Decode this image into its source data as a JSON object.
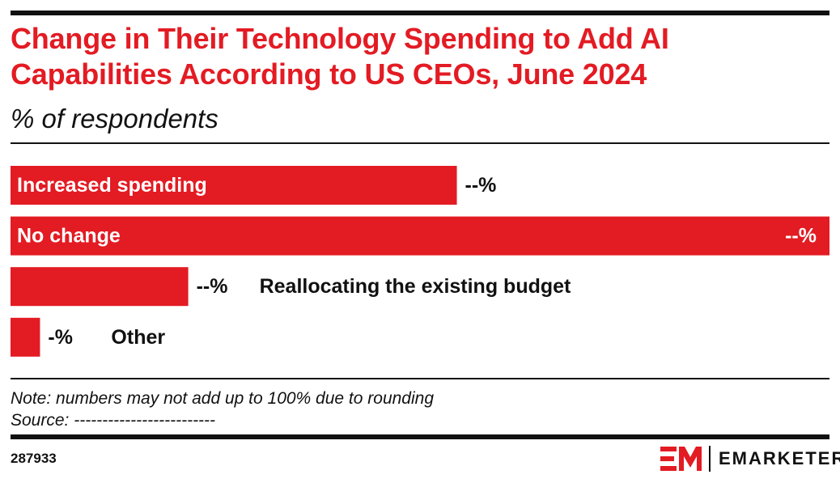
{
  "header": {
    "title_line1": "Change in Their Technology Spending to Add AI",
    "title_line2": "Capabilities According to US CEOs, June 2024",
    "subtitle": "% of respondents"
  },
  "chart_data": {
    "type": "bar",
    "orientation": "horizontal",
    "categories": [
      "Increased spending",
      "No change",
      "Reallocating the existing budget",
      "Other"
    ],
    "values": [
      54.5,
      100,
      21.7,
      3.6
    ],
    "value_labels": [
      "--%",
      "--%",
      "--%",
      "-%"
    ],
    "label_inside": [
      true,
      true,
      false,
      false
    ],
    "bar_color": "#e31b23",
    "grid": false,
    "legend": "none"
  },
  "footer": {
    "note": "Note: numbers may not add up to 100% due to rounding",
    "source": "Source: -------------------------",
    "chart_id": "287933",
    "brand": "EMARKETER",
    "brand_color": "#e31b23"
  }
}
